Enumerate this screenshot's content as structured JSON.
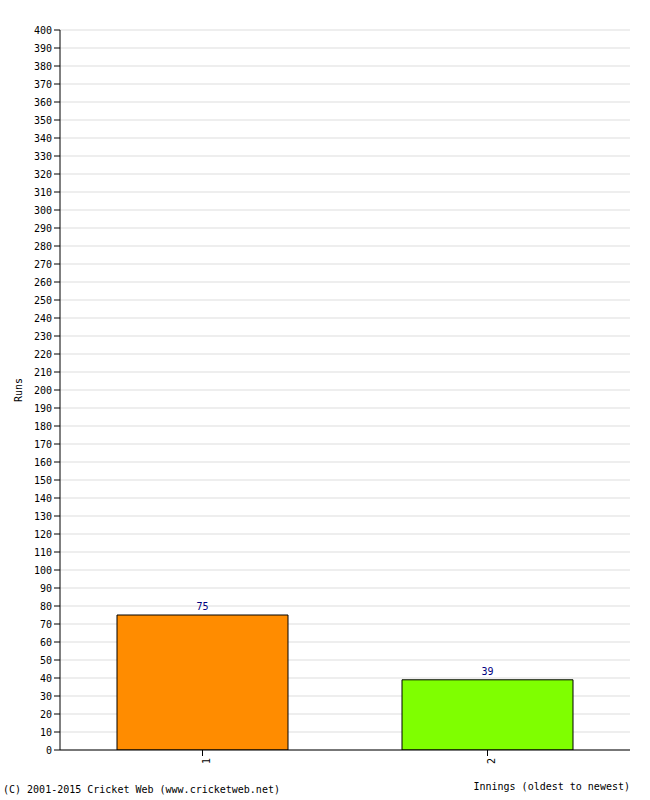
{
  "chart_data": {
    "type": "bar",
    "categories": [
      "1",
      "2"
    ],
    "values": [
      75,
      39
    ],
    "colors": [
      "#ff8c00",
      "#7fff00"
    ],
    "xlabel": "Innings (oldest to newest)",
    "ylabel": "Runs",
    "ylim": [
      0,
      400
    ],
    "yticks": [
      0,
      10,
      20,
      30,
      40,
      50,
      60,
      70,
      80,
      90,
      100,
      110,
      120,
      130,
      140,
      150,
      160,
      170,
      180,
      190,
      200,
      210,
      220,
      230,
      240,
      250,
      260,
      270,
      280,
      290,
      300,
      310,
      320,
      330,
      340,
      350,
      360,
      370,
      380,
      390,
      400
    ],
    "grid": true,
    "data_labels": true,
    "annotation": "(C) 2001-2015 Cricket Web (www.cricketweb.net)"
  }
}
